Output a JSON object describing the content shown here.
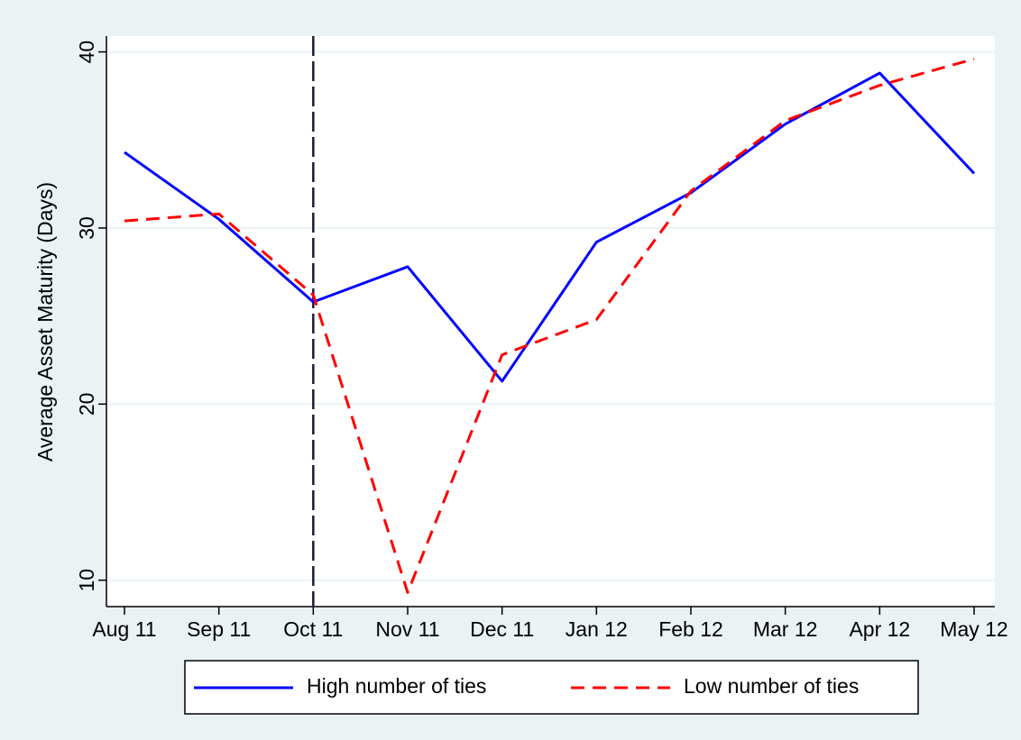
{
  "chart_data": {
    "type": "line",
    "y_label": "Average Asset Maturity (Days)",
    "categories": [
      "Aug 11",
      "Sep 11",
      "Oct 11",
      "Nov 11",
      "Dec 11",
      "Jan 12",
      "Feb 12",
      "Mar 12",
      "Apr 12",
      "May 12"
    ],
    "series": [
      {
        "name": "High number of ties",
        "color": "#0000ff",
        "dash": "solid",
        "values": [
          34.3,
          30.5,
          25.8,
          27.8,
          21.3,
          29.2,
          32.0,
          35.9,
          38.8,
          33.1
        ]
      },
      {
        "name": "Low number of ties",
        "color": "#ff0000",
        "dash": "dashed",
        "values": [
          30.4,
          30.8,
          26.2,
          9.3,
          22.8,
          24.8,
          32.1,
          36.1,
          38.1,
          39.6
        ]
      }
    ],
    "vline": "Oct 11",
    "ylim": [
      8.5,
      40.9
    ],
    "yticks": [
      10,
      20,
      30,
      40
    ],
    "grid": true,
    "legend": "bottom"
  }
}
